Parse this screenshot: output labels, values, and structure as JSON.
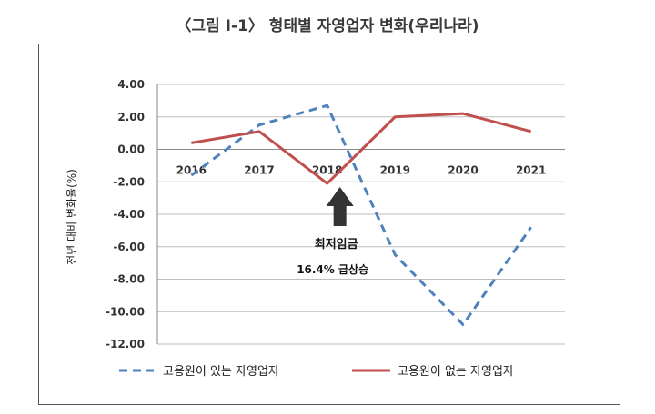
{
  "title": "〈그림 Ⅰ-1〉 형태별 자영업자 변화(우리나라)",
  "chart_data": {
    "type": "line",
    "title": "〈그림 Ⅰ-1〉 형태별 자영업자 변화(우리나라)",
    "xlabel": "",
    "ylabel": "전년 대비 변화율(%)",
    "categories": [
      "2016",
      "2017",
      "2018",
      "2019",
      "2020",
      "2021"
    ],
    "ylim": [
      -12,
      4
    ],
    "y_ticks": [
      4,
      2,
      0,
      -2,
      -4,
      -6,
      -8,
      -10,
      -12
    ],
    "y_tick_labels": [
      "4.00",
      "2.00",
      "0.00",
      "-2.00",
      "-4.00",
      "-6.00",
      "-8.00",
      "-10.00",
      "-12.00"
    ],
    "grid": "horizontal",
    "legend_position": "bottom",
    "series": [
      {
        "name": "고용원이 있는 자영업자",
        "color": "#4f81bd",
        "style": "dashed",
        "values": [
          -1.6,
          1.5,
          2.7,
          -6.5,
          -10.8,
          -4.8
        ]
      },
      {
        "name": "고용원이 없는 자영업자",
        "color": "#c0504d",
        "style": "solid",
        "values": [
          0.4,
          1.1,
          -2.1,
          2.0,
          2.2,
          1.1
        ]
      }
    ],
    "annotation": {
      "line1": "최저임금",
      "line2": "16.4% 급상승",
      "category": "2018",
      "arrow_color": "#333333"
    }
  }
}
